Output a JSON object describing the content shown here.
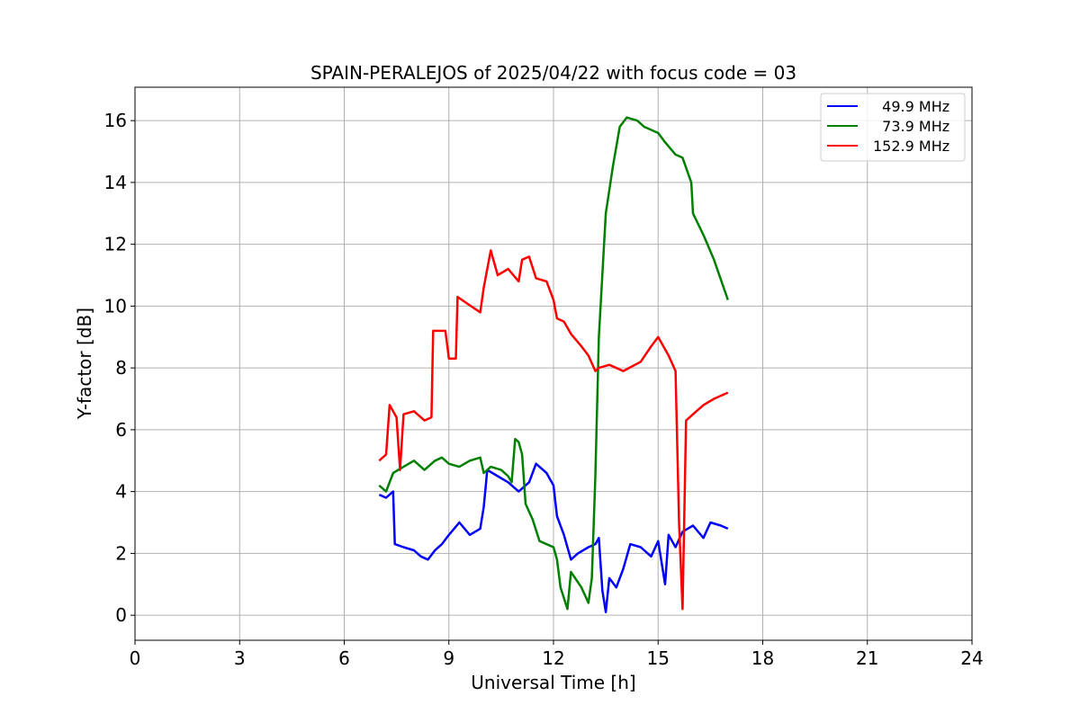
{
  "chart_data": {
    "type": "line",
    "title": "SPAIN-PERALEJOS of 2025/04/22 with focus code = 03",
    "xlabel": "Universal Time [h]",
    "ylabel": "Y-factor [dB]",
    "xlim": [
      0,
      24
    ],
    "ylim": [
      -0.81,
      17.08
    ],
    "xticks": [
      "0",
      "3",
      "6",
      "9",
      "12",
      "15",
      "18",
      "21",
      "24"
    ],
    "xtick_values": [
      0,
      3,
      6,
      9,
      12,
      15,
      18,
      21,
      24
    ],
    "yticks": [
      "0",
      "2",
      "4",
      "6",
      "8",
      "10",
      "12",
      "14",
      "16"
    ],
    "ytick_values": [
      0,
      2,
      4,
      6,
      8,
      10,
      12,
      14,
      16
    ],
    "grid": true,
    "legend_position": "top-right",
    "series": [
      {
        "name": "  49.9 MHz",
        "color": "#0000ff",
        "x": [
          7.0,
          7.2,
          7.4,
          7.45,
          7.7,
          8.0,
          8.2,
          8.4,
          8.6,
          8.8,
          9.0,
          9.3,
          9.6,
          9.9,
          10.0,
          10.1,
          10.4,
          10.7,
          11.0,
          11.3,
          11.5,
          11.8,
          12.0,
          12.1,
          12.3,
          12.5,
          12.7,
          13.0,
          13.2,
          13.3,
          13.4,
          13.5,
          13.6,
          13.8,
          14.0,
          14.2,
          14.5,
          14.8,
          15.0,
          15.2,
          15.3,
          15.5,
          15.7,
          16.0,
          16.3,
          16.5,
          16.8,
          17.0
        ],
        "y": [
          3.9,
          3.8,
          4.0,
          2.3,
          2.2,
          2.1,
          1.9,
          1.8,
          2.1,
          2.3,
          2.6,
          3.0,
          2.6,
          2.8,
          3.5,
          4.7,
          4.5,
          4.3,
          4.0,
          4.3,
          4.9,
          4.6,
          4.2,
          3.2,
          2.6,
          1.8,
          2.0,
          2.2,
          2.3,
          2.5,
          0.8,
          0.1,
          1.2,
          0.9,
          1.5,
          2.3,
          2.2,
          1.9,
          2.4,
          1.0,
          2.6,
          2.2,
          2.7,
          2.9,
          2.5,
          3.0,
          2.9,
          2.8
        ]
      },
      {
        "name": "  73.9 MHz",
        "color": "#008000",
        "x": [
          7.0,
          7.2,
          7.4,
          7.7,
          8.0,
          8.3,
          8.6,
          8.8,
          9.0,
          9.3,
          9.6,
          9.9,
          10.0,
          10.2,
          10.5,
          10.7,
          10.8,
          10.9,
          11.0,
          11.1,
          11.2,
          11.4,
          11.6,
          12.0,
          12.1,
          12.2,
          12.4,
          12.5,
          12.8,
          13.0,
          13.1,
          13.2,
          13.3,
          13.5,
          13.7,
          13.9,
          14.1,
          14.4,
          14.6,
          15.0,
          15.2,
          15.5,
          15.7,
          15.95,
          16.0,
          16.3,
          16.6,
          17.0
        ],
        "y": [
          4.2,
          4.0,
          4.6,
          4.8,
          5.0,
          4.7,
          5.0,
          5.1,
          4.9,
          4.8,
          5.0,
          5.1,
          4.6,
          4.8,
          4.7,
          4.5,
          4.3,
          5.7,
          5.6,
          5.2,
          3.6,
          3.1,
          2.4,
          2.2,
          1.8,
          0.9,
          0.2,
          1.4,
          0.9,
          0.4,
          1.2,
          4.5,
          9.0,
          13.0,
          14.5,
          15.8,
          16.1,
          16.0,
          15.8,
          15.6,
          15.3,
          14.9,
          14.8,
          14.0,
          13.0,
          12.3,
          11.5,
          10.2
        ]
      },
      {
        "name": "152.9 MHz",
        "color": "#ff0000",
        "x": [
          7.0,
          7.2,
          7.3,
          7.5,
          7.6,
          7.7,
          8.0,
          8.3,
          8.5,
          8.55,
          8.9,
          9.0,
          9.2,
          9.25,
          9.5,
          9.9,
          10.0,
          10.2,
          10.4,
          10.7,
          11.0,
          11.1,
          11.3,
          11.5,
          11.8,
          12.0,
          12.1,
          12.3,
          12.5,
          12.8,
          13.0,
          13.2,
          13.3,
          13.6,
          14.0,
          14.5,
          14.8,
          15.0,
          15.3,
          15.5,
          15.6,
          15.7,
          15.8,
          16.0,
          16.3,
          16.6,
          17.0
        ],
        "y": [
          5.0,
          5.2,
          6.8,
          6.4,
          4.7,
          6.5,
          6.6,
          6.3,
          6.4,
          9.2,
          9.2,
          8.3,
          8.3,
          10.3,
          10.1,
          9.8,
          10.6,
          11.8,
          11.0,
          11.2,
          10.8,
          11.5,
          11.6,
          10.9,
          10.8,
          10.2,
          9.6,
          9.5,
          9.1,
          8.7,
          8.4,
          7.9,
          8.0,
          8.1,
          7.9,
          8.2,
          8.7,
          9.0,
          8.4,
          7.9,
          3.0,
          0.2,
          6.3,
          6.5,
          6.8,
          7.0,
          7.2
        ]
      }
    ]
  }
}
